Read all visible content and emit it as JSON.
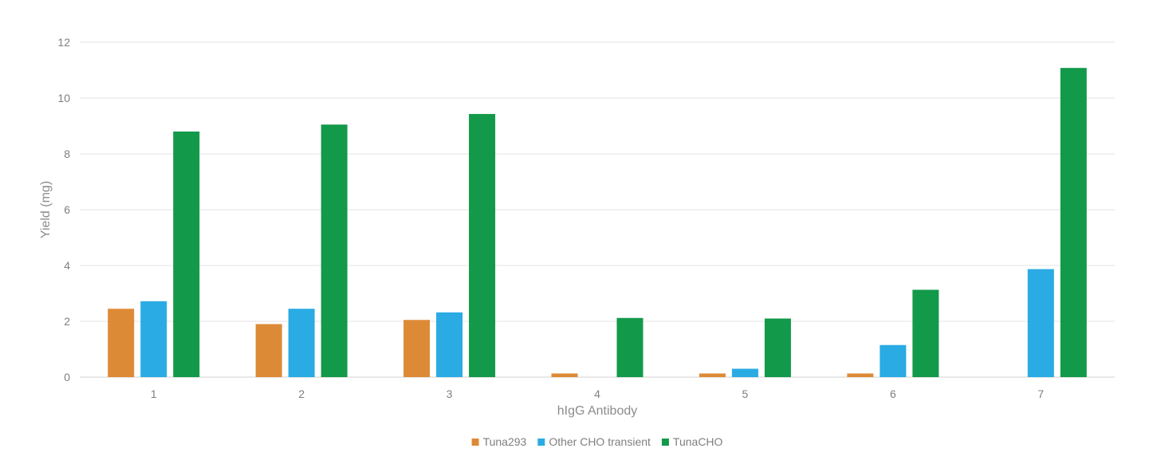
{
  "chart_data": {
    "type": "bar",
    "title": "",
    "xlabel": "hIgG Antibody",
    "ylabel": "Yield (mg)",
    "categories": [
      "1",
      "2",
      "3",
      "4",
      "5",
      "6",
      "7"
    ],
    "ylim": [
      0,
      12
    ],
    "yticks": [
      "0",
      "2",
      "4",
      "6",
      "8",
      "10",
      "12"
    ],
    "grid": true,
    "legend_position": "bottom",
    "series": [
      {
        "name": "Tuna293",
        "color": "#dd8a37",
        "values": [
          2.45,
          1.9,
          2.05,
          0.13,
          0.13,
          0.13,
          0
        ]
      },
      {
        "name": "Other CHO transient",
        "color": "#2aabe4",
        "values": [
          2.72,
          2.45,
          2.32,
          0,
          0.3,
          1.15,
          3.87
        ]
      },
      {
        "name": "TunaCHO",
        "color": "#13994a",
        "values": [
          8.8,
          9.05,
          9.43,
          2.12,
          2.1,
          3.13,
          11.08
        ]
      }
    ]
  }
}
